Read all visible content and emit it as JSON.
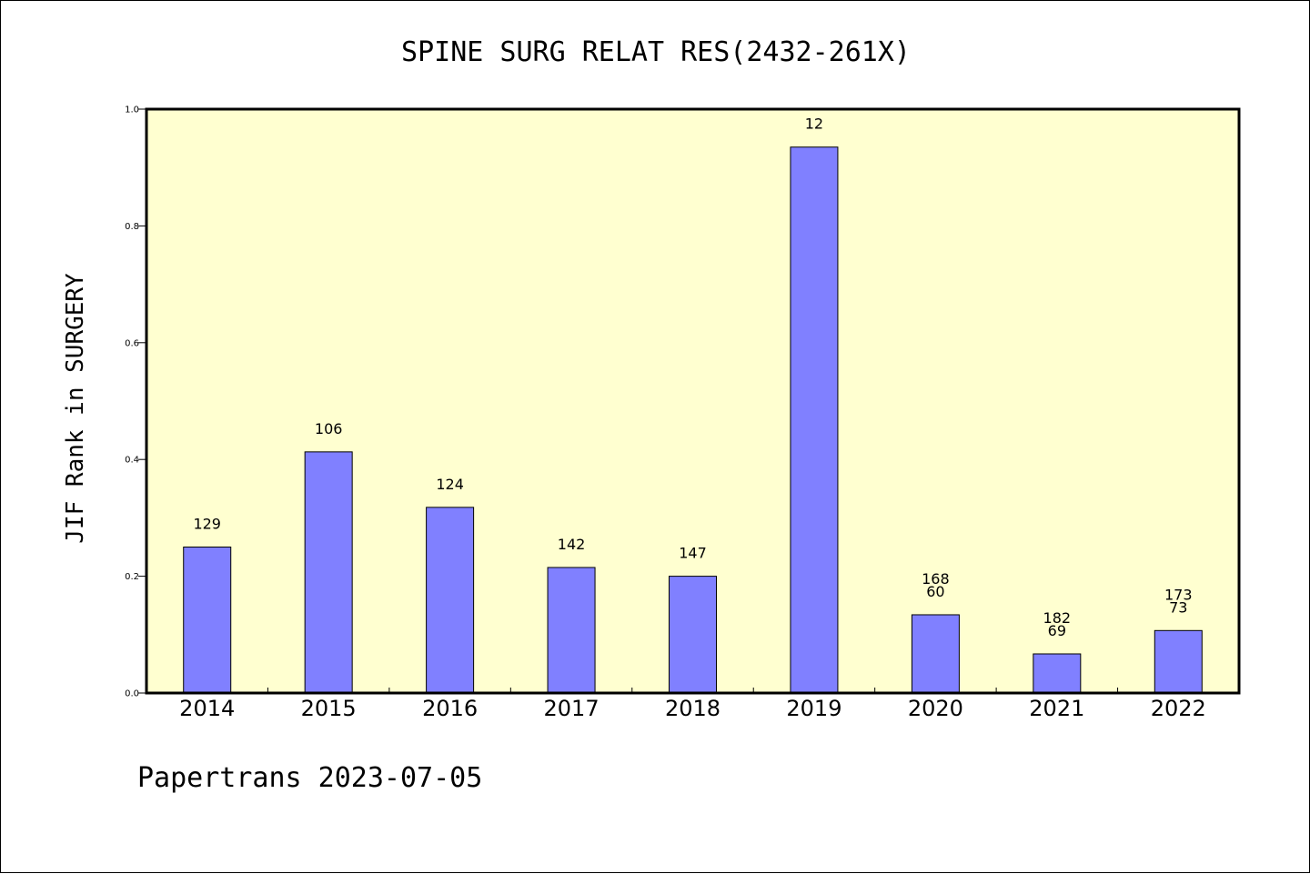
{
  "chart_data": {
    "type": "bar",
    "title": "SPINE SURG RELAT RES(2432-261X)",
    "xlabel": "",
    "ylabel": "JIF Rank in SURGERY",
    "ylim": [
      0.0,
      1.0
    ],
    "yticks": [
      "0.0",
      "0.2",
      "0.4",
      "0.6",
      "0.8",
      "1.0"
    ],
    "categories": [
      "2014",
      "2015",
      "2016",
      "2017",
      "2018",
      "2019",
      "2020",
      "2021",
      "2022"
    ],
    "values": [
      0.25,
      0.413,
      0.318,
      0.215,
      0.2,
      0.935,
      0.134,
      0.067,
      0.107
    ],
    "bar_labels": [
      [
        "129"
      ],
      [
        "106"
      ],
      [
        "124"
      ],
      [
        "142"
      ],
      [
        "147"
      ],
      [
        "12"
      ],
      [
        "168",
        "60"
      ],
      [
        "182",
        "69"
      ],
      [
        "173",
        "73"
      ]
    ],
    "grid": false,
    "colors": {
      "plot_background": "#ffffd0",
      "bar_fill": "#8080ff",
      "bar_stroke": "#000000"
    }
  },
  "footer": {
    "text": "Papertrans 2023-07-05"
  }
}
